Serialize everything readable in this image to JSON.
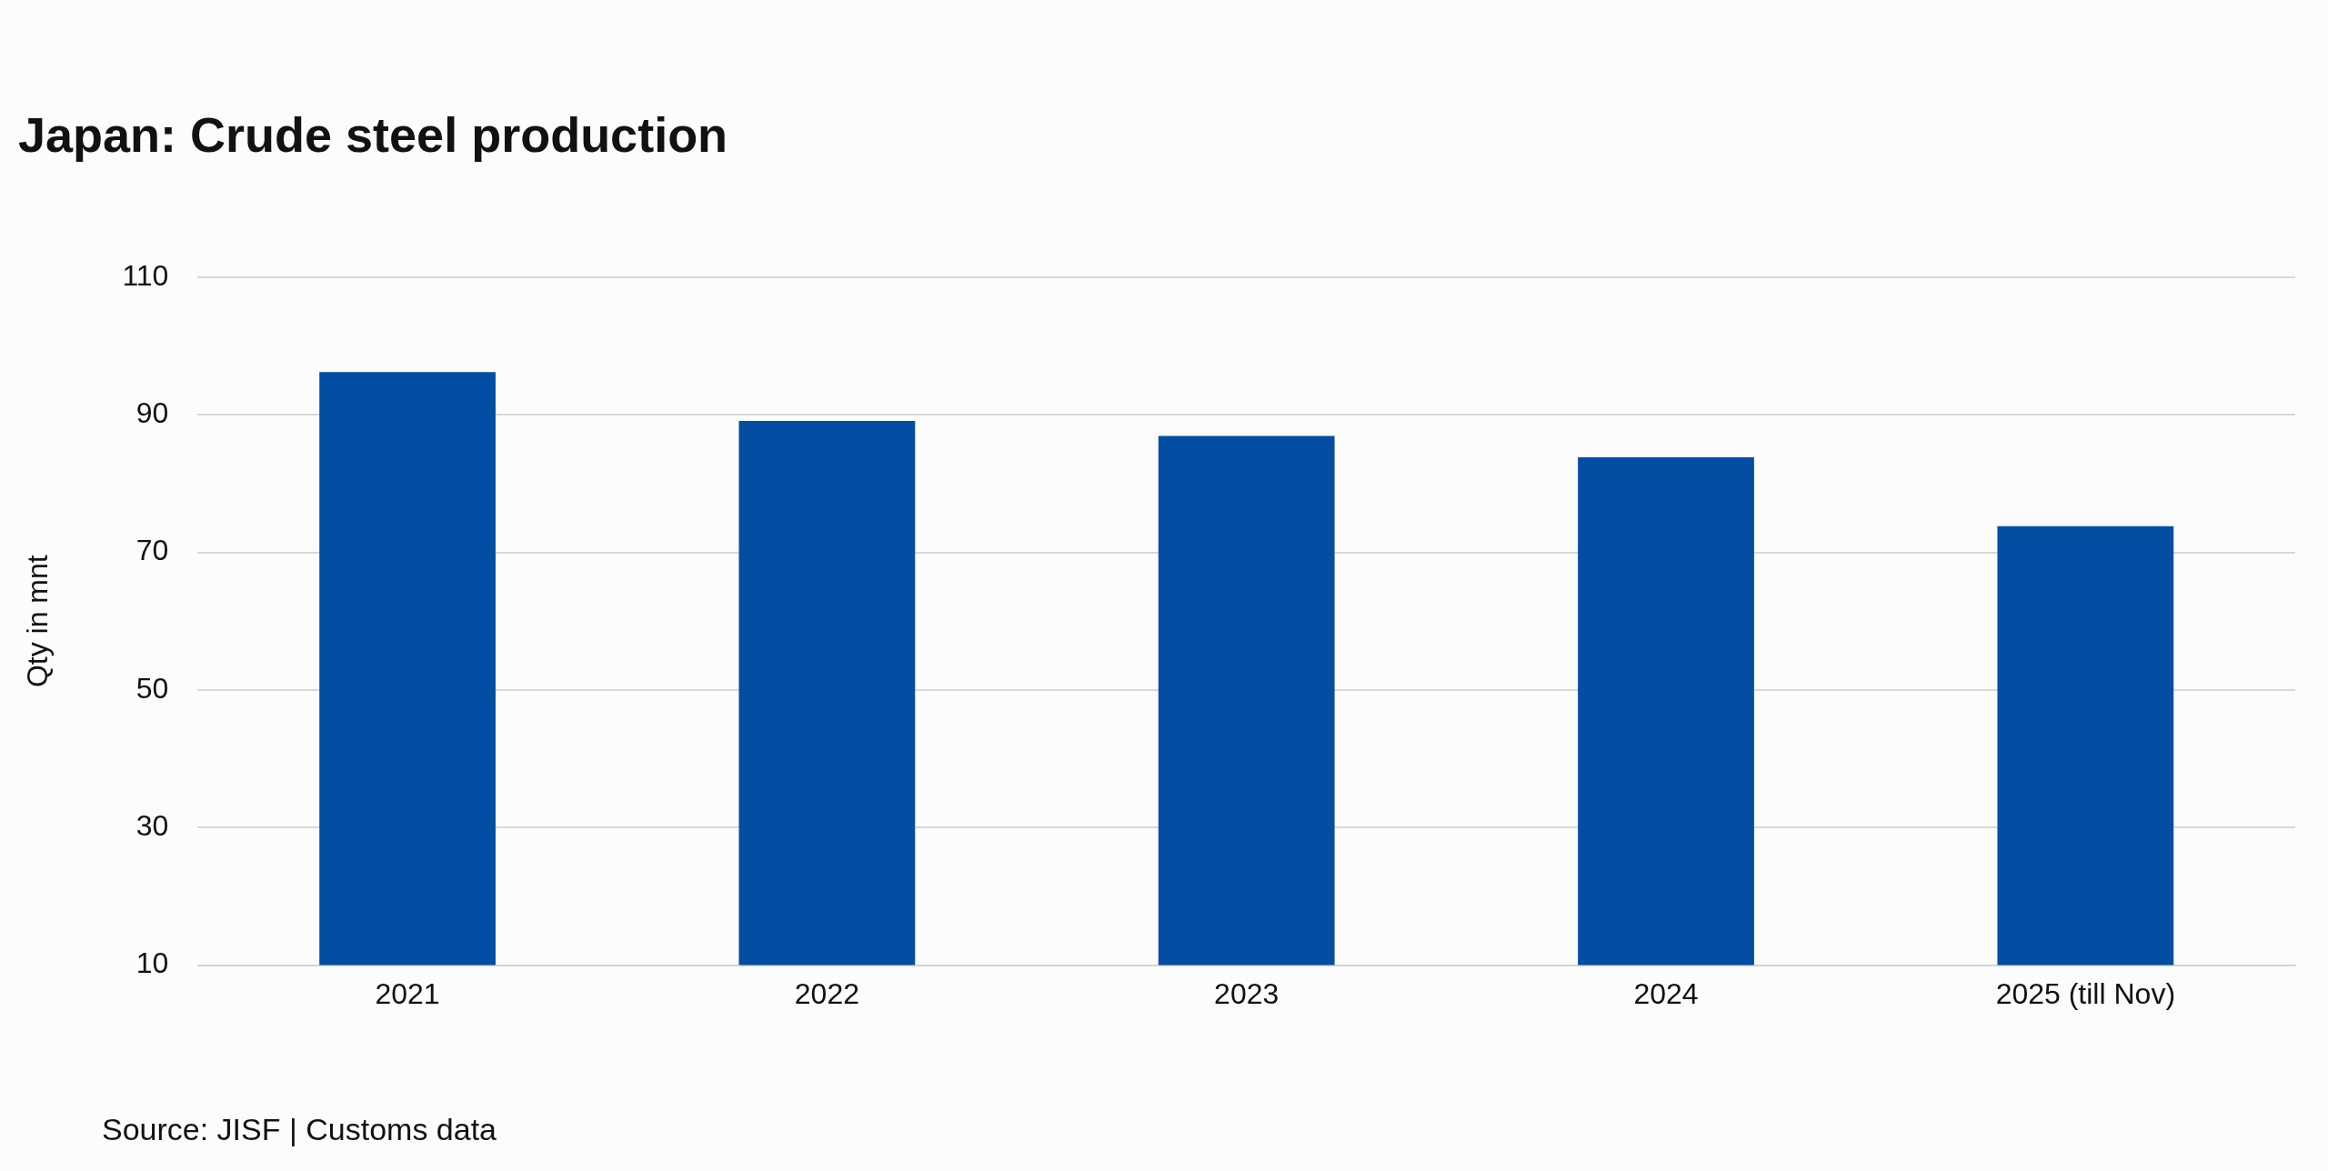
{
  "chart_data": {
    "type": "bar",
    "title": "Japan: Crude steel production",
    "ylabel": "Qty in mnt",
    "categories": [
      "2021",
      "2022",
      "2023",
      "2024",
      "2025 (till Nov)"
    ],
    "values": [
      96.2,
      89.1,
      86.9,
      83.8,
      73.8
    ],
    "color": "#034ea2",
    "ylim": [
      10,
      110
    ],
    "yticks": [
      10,
      30,
      50,
      70,
      90,
      110
    ],
    "grid": "y",
    "annotations": [
      "Source: JISF | Customs data"
    ]
  }
}
